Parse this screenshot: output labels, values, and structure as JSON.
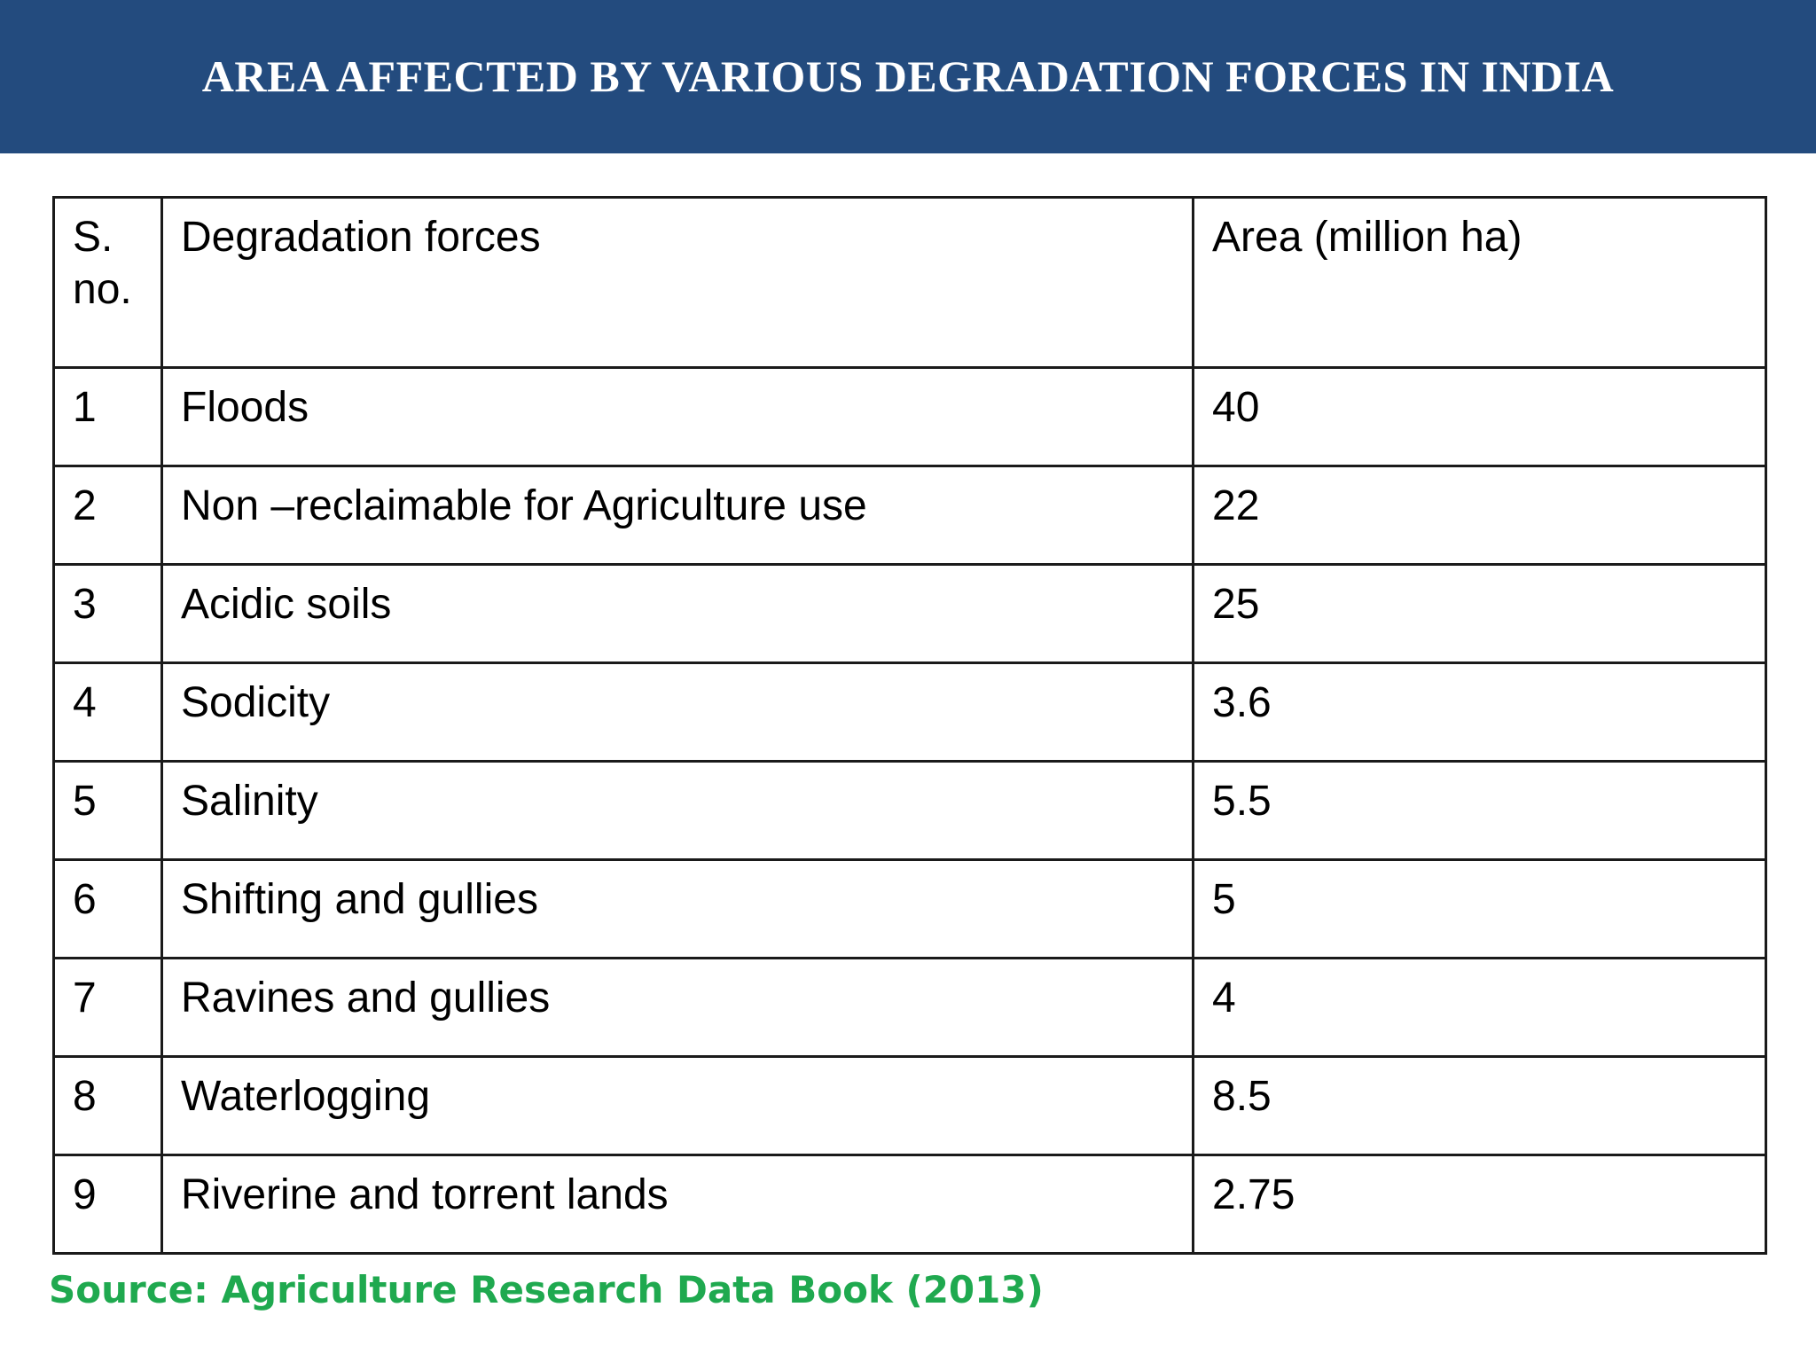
{
  "header": {
    "title": "AREA AFFECTED BY VARIOUS DEGRADATION FORCES IN INDIA",
    "background_color": "#234B7E"
  },
  "table": {
    "columns": [
      "S.\nno.",
      "Degradation forces",
      "Area (million ha)"
    ],
    "rows": [
      {
        "sno": "1",
        "force": "Floods",
        "area": "40"
      },
      {
        "sno": "2",
        "force": "Non –reclaimable for Agriculture use",
        "area": "22"
      },
      {
        "sno": "3",
        "force": "Acidic soils",
        "area": "25"
      },
      {
        "sno": "4",
        "force": "Sodicity",
        "area": "3.6"
      },
      {
        "sno": "5",
        "force": "Salinity",
        "area": "5.5"
      },
      {
        "sno": "6",
        "force": "Shifting and gullies",
        "area": "5"
      },
      {
        "sno": "7",
        "force": "Ravines and gullies",
        "area": "4"
      },
      {
        "sno": "8",
        "force": "Waterlogging",
        "area": "8.5"
      },
      {
        "sno": "9",
        "force": "Riverine and torrent lands",
        "area": "2.75"
      }
    ]
  },
  "source": {
    "text": "Source: Agriculture Research Data Book (2013)",
    "color": "#1FA94F"
  }
}
